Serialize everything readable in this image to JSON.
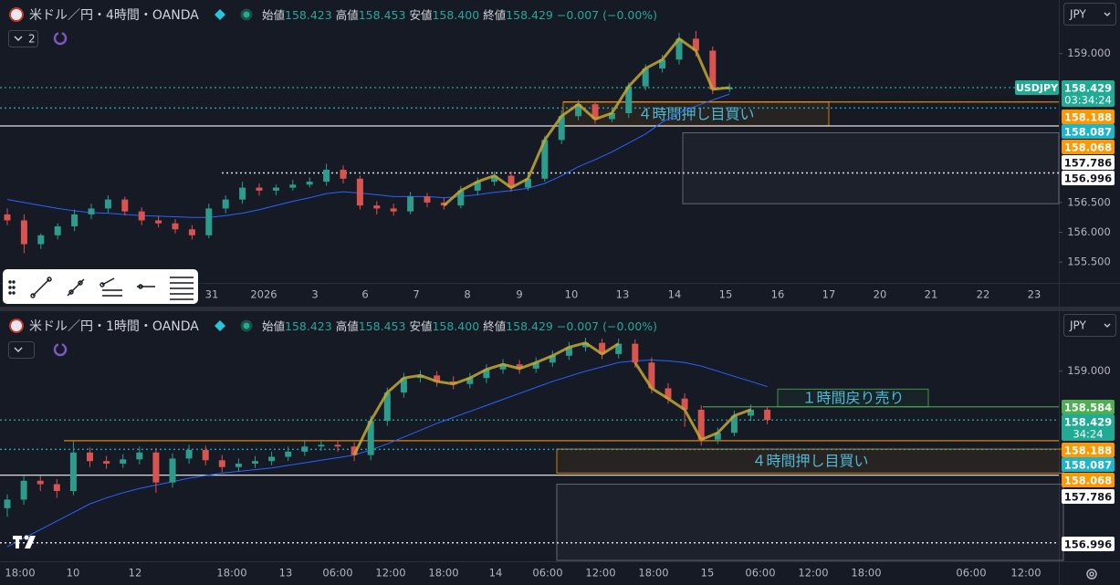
{
  "chart_data": [
    {
      "type": "candlestick",
      "title": "米ドル／円・4時間・OANDA",
      "indicator_count": 2,
      "ohlc": [
        {
          "label": "始値",
          "value": 158.423
        },
        {
          "label": "高値",
          "value": 158.453
        },
        {
          "label": "安値",
          "value": {
            "value": 158.4,
            "label": "158.400"
          }
        },
        {
          "label": "終値",
          "value": 158.429
        }
      ],
      "change": "−0.007 (−0.00%)",
      "currency": "JPY",
      "symbol_tag": "USDJPY",
      "ylim": [
        155.15,
        159.9
      ],
      "yticks": [
        {
          "value": 159,
          "label": "159.000"
        },
        {
          "value": 156.5,
          "label": "156.500"
        },
        {
          "value": 156,
          "label": "156.000"
        },
        {
          "value": 155.5,
          "label": "155.500"
        }
      ],
      "xlabels": [
        "31",
        "2026",
        "3",
        "6",
        "7",
        "8",
        "9",
        "10",
        "13",
        "14",
        "15",
        "16",
        "17",
        "20",
        "21",
        "22",
        "23"
      ],
      "up_color": "#2e9c8c",
      "down_color": "#d9534f",
      "ma_color": "#2962ff",
      "open": [
        156.3,
        156.2,
        155.8,
        155.95,
        156.1,
        156.3,
        156.4,
        156.55,
        156.35,
        156.2,
        156.15,
        156.05,
        155.95,
        156.4,
        156.55,
        156.75,
        156.7,
        156.75,
        156.8,
        156.85,
        157.05,
        156.9,
        156.45,
        156.4,
        156.35,
        156.6,
        156.5,
        156.45,
        156.7,
        156.85,
        156.95,
        156.75,
        156.9,
        157.55,
        157.95,
        158.15,
        157.9,
        158.0,
        158.45,
        158.75,
        158.9,
        159.25,
        159.05,
        158.4
      ],
      "high": [
        156.4,
        156.3,
        155.98,
        156.15,
        156.38,
        156.48,
        156.62,
        156.6,
        156.42,
        156.28,
        156.22,
        156.12,
        156.48,
        156.62,
        156.85,
        156.82,
        156.8,
        156.88,
        156.92,
        157.15,
        157.12,
        156.95,
        156.52,
        156.48,
        156.68,
        156.66,
        156.58,
        156.78,
        156.92,
        157.02,
        157.02,
        156.98,
        157.62,
        158.05,
        158.22,
        158.2,
        158.08,
        158.52,
        158.82,
        158.98,
        159.35,
        159.38,
        159.12,
        158.5
      ],
      "low": [
        156.12,
        155.65,
        155.72,
        155.88,
        156.02,
        156.22,
        156.33,
        156.28,
        156.12,
        156.08,
        155.98,
        155.88,
        155.9,
        156.32,
        156.48,
        156.62,
        156.62,
        156.7,
        156.75,
        156.78,
        156.82,
        156.38,
        156.3,
        156.28,
        156.3,
        156.42,
        156.38,
        156.4,
        156.62,
        156.78,
        156.68,
        156.7,
        156.85,
        157.48,
        157.88,
        157.82,
        157.85,
        157.92,
        158.38,
        158.68,
        158.82,
        158.95,
        158.32,
        158.35
      ],
      "close": [
        156.2,
        155.8,
        155.95,
        156.1,
        156.3,
        156.4,
        156.55,
        156.35,
        156.2,
        156.15,
        156.05,
        155.95,
        156.4,
        156.55,
        156.75,
        156.7,
        156.75,
        156.8,
        156.85,
        157.05,
        156.9,
        156.45,
        156.4,
        156.35,
        156.6,
        156.5,
        156.45,
        156.7,
        156.85,
        156.95,
        156.75,
        156.9,
        157.55,
        157.95,
        158.15,
        157.9,
        158.0,
        158.45,
        158.75,
        158.9,
        159.25,
        159.05,
        158.4,
        158.43
      ],
      "ma": [
        156.55,
        156.5,
        156.45,
        156.4,
        156.36,
        156.33,
        156.32,
        156.3,
        156.28,
        156.27,
        156.26,
        156.25,
        156.25,
        156.28,
        156.32,
        156.38,
        156.45,
        156.52,
        156.58,
        156.65,
        156.68,
        156.66,
        156.63,
        156.6,
        156.6,
        156.6,
        156.58,
        156.6,
        156.63,
        156.67,
        156.7,
        156.74,
        156.82,
        156.95,
        157.1,
        157.22,
        157.35,
        157.5,
        157.65,
        157.85,
        158.0,
        158.12,
        158.22,
        158.32
      ],
      "price_labels": [
        {
          "value": 158.429,
          "color": "#22ab94",
          "countdown": "03:34:24",
          "line": "dotted"
        },
        {
          "value": 158.188,
          "color": "#ff9800",
          "line": "solid"
        },
        {
          "value": 158.087,
          "color": "#1fb5c9",
          "line": "dotted"
        },
        {
          "value": 158.068,
          "color": "#ff9800"
        },
        {
          "value": 157.786,
          "color": "#ffffff",
          "line": "solid"
        },
        {
          "value": 156.996,
          "color": "#ffffff",
          "line": "dotted"
        }
      ],
      "zones": [
        {
          "label": "４時間押し目買い",
          "top": 158.188,
          "bottom": 157.786,
          "color": "#ff9800"
        },
        {
          "top": 157.67,
          "bottom": 156.48,
          "color": "#787b86"
        }
      ]
    },
    {
      "type": "candlestick",
      "title": "米ドル／円・1時間・OANDA",
      "ohlc": [
        {
          "label": "始値",
          "value": 158.423
        },
        {
          "label": "高値",
          "value": 158.453
        },
        {
          "label": "安値",
          "value": {
            "value": 158.4,
            "label": "158.400"
          }
        },
        {
          "label": "終値",
          "value": 158.429
        }
      ],
      "change": "−0.007 (−0.00%)",
      "currency": "JPY",
      "ylim": [
        156.78,
        159.7
      ],
      "yticks": [
        {
          "value": 159,
          "label": "159.000"
        }
      ],
      "xlabels": [
        "18:00",
        "10",
        "12",
        "18:00",
        "13",
        "06:00",
        "12:00",
        "18:00",
        "14",
        "06:00",
        "12:00",
        "18:00",
        "15",
        "06:00",
        "12:00",
        "18:00",
        "06:00",
        "12:00"
      ],
      "up_color": "#2e9c8c",
      "down_color": "#d9534f",
      "ma_color": "#2962ff",
      "open": [
        157.4,
        157.5,
        157.72,
        157.68,
        157.6,
        158.05,
        157.95,
        157.92,
        157.97,
        158.05,
        157.7,
        157.98,
        158.08,
        157.96,
        157.88,
        157.92,
        157.95,
        158.0,
        158.06,
        158.12,
        158.14,
        158.12,
        158.02,
        158.42,
        158.75,
        158.92,
        158.95,
        158.88,
        158.85,
        158.92,
        159.02,
        159.08,
        159.03,
        159.1,
        159.18,
        159.28,
        159.33,
        159.2,
        159.32,
        159.1,
        158.8,
        158.68,
        158.55,
        158.2,
        158.28,
        158.48,
        158.55
      ],
      "high": [
        157.56,
        157.78,
        157.78,
        157.74,
        158.18,
        158.11,
        158.01,
        158.03,
        158.12,
        158.1,
        158.04,
        158.14,
        158.13,
        158.02,
        157.98,
        158.01,
        158.06,
        158.12,
        158.18,
        158.2,
        158.19,
        158.17,
        158.48,
        158.81,
        158.98,
        159.01,
        159.0,
        158.94,
        158.98,
        159.08,
        159.14,
        159.13,
        159.16,
        159.24,
        159.34,
        159.39,
        159.38,
        159.38,
        159.37,
        159.16,
        158.86,
        158.74,
        158.6,
        158.34,
        158.54,
        158.61,
        158.58
      ],
      "low": [
        157.3,
        157.44,
        157.6,
        157.52,
        157.55,
        157.88,
        157.86,
        157.87,
        157.91,
        157.58,
        157.64,
        157.92,
        157.9,
        157.82,
        157.83,
        157.87,
        157.9,
        157.95,
        158.01,
        158.07,
        158.06,
        157.95,
        157.96,
        158.36,
        158.69,
        158.87,
        158.82,
        158.79,
        158.8,
        158.86,
        158.97,
        158.97,
        158.98,
        159.05,
        159.13,
        159.23,
        159.14,
        159.15,
        159.04,
        158.74,
        158.62,
        158.35,
        158.13,
        158.15,
        158.24,
        158.42,
        158.38
      ],
      "close": [
        157.5,
        157.72,
        157.68,
        157.6,
        158.05,
        157.95,
        157.92,
        157.97,
        158.05,
        157.7,
        157.98,
        158.08,
        157.96,
        157.88,
        157.92,
        157.95,
        158.0,
        158.06,
        158.12,
        158.14,
        158.12,
        158.02,
        158.42,
        158.75,
        158.92,
        158.95,
        158.88,
        158.85,
        158.92,
        159.02,
        159.08,
        159.03,
        159.1,
        159.18,
        159.28,
        159.33,
        159.2,
        159.32,
        159.1,
        158.8,
        158.68,
        158.55,
        158.2,
        158.28,
        158.48,
        158.55,
        158.43
      ],
      "ma": [
        156.95,
        157.05,
        157.15,
        157.25,
        157.35,
        157.45,
        157.52,
        157.58,
        157.63,
        157.67,
        157.71,
        157.75,
        157.78,
        157.81,
        157.83,
        157.85,
        157.87,
        157.9,
        157.93,
        157.96,
        157.99,
        158.02,
        158.08,
        158.15,
        158.23,
        158.31,
        158.39,
        158.46,
        158.53,
        158.6,
        158.67,
        158.74,
        158.81,
        158.88,
        158.94,
        159.0,
        159.05,
        159.1,
        159.12,
        159.13,
        159.12,
        159.1,
        159.06,
        159.0,
        158.94,
        158.88,
        158.82
      ],
      "price_labels": [
        {
          "value": 158.584,
          "color": "#4caf50",
          "line": "solid"
        },
        {
          "value": 158.429,
          "color": "#22ab94",
          "countdown": "34:24",
          "line": "dotted"
        },
        {
          "value": 158.188,
          "color": "#ff9800",
          "line": "solid"
        },
        {
          "value": 158.087,
          "color": "#1fb5c9",
          "line": "dotted"
        },
        {
          "value": 158.068,
          "color": "#ff9800"
        },
        {
          "value": 157.786,
          "color": "#ffffff",
          "line": "solid"
        },
        {
          "value": 156.996,
          "color": "#ffffff",
          "line": "dotted"
        }
      ],
      "zones": [
        {
          "label": "１時間戻り売り",
          "top": 158.79,
          "bottom": 158.584,
          "color": "#4caf50"
        },
        {
          "label": "４時間押し目買い",
          "top": 158.09,
          "bottom": 157.81,
          "color": "#ff9800"
        },
        {
          "top": 157.68,
          "bottom": 156.79,
          "color": "#787b86"
        }
      ]
    }
  ]
}
